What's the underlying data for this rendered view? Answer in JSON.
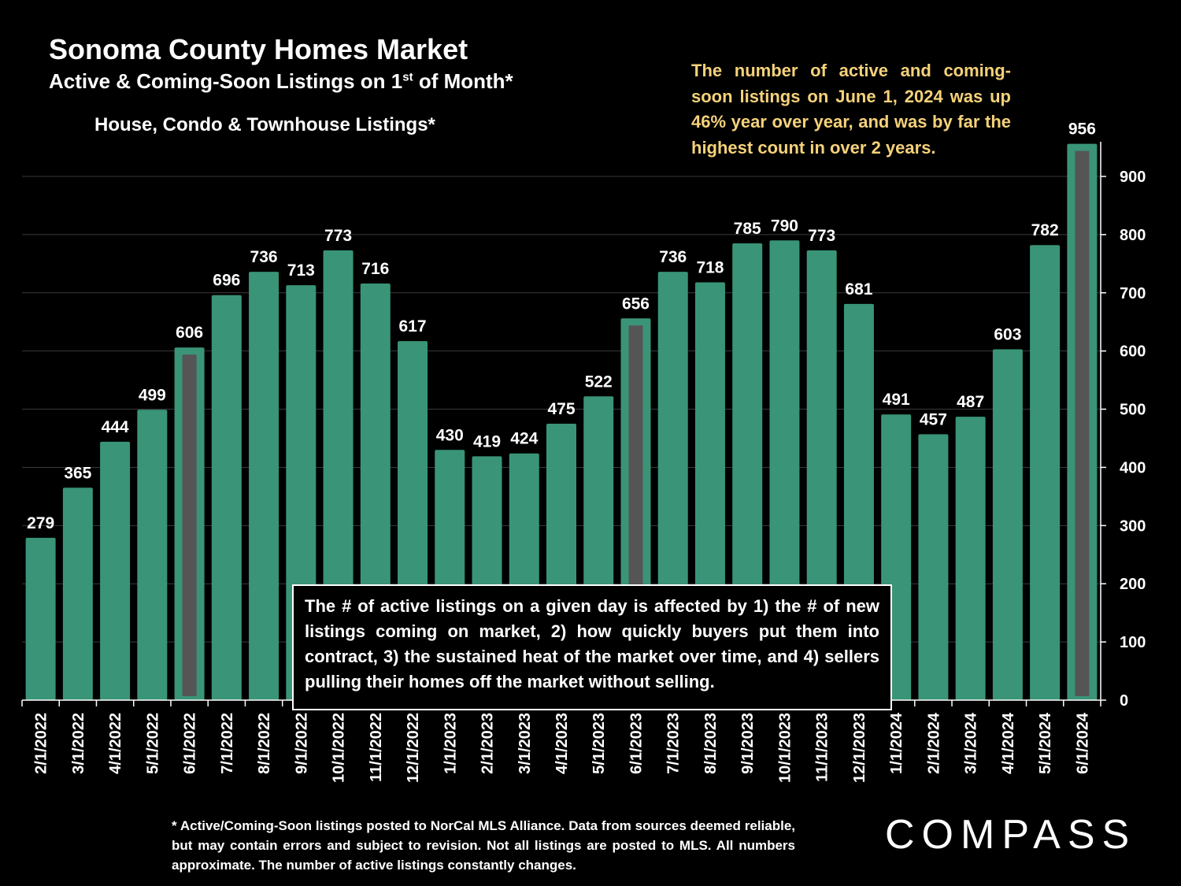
{
  "header": {
    "title": "Sonoma County Homes Market",
    "subtitle_main": "Active & Coming-Soon Listings on 1",
    "subtitle_sup": "st",
    "subtitle_tail": " of Month*",
    "series_label": "House, Condo & Townhouse Listings*"
  },
  "callout": "The number of active and coming-soon listings on June 1, 2024 was up 46% year over year, and was by far the highest count in over 2 years.",
  "note_box": "The # of active listings on a given day is affected by 1) the # of new listings coming on market, 2) how quickly buyers put them into contract, 3) the sustained heat of the market over time, and 4) sellers pulling their homes off the market without selling.",
  "footnote": "* Active/Coming-Soon listings posted to NorCal MLS Alliance.  Data from sources deemed reliable, but may contain errors and subject to revision.  Not all listings are posted to MLS. All numbers approximate. The number of active listings constantly changes.",
  "logo": "COMPASS",
  "colors": {
    "bar": "#3a9478",
    "highlight_inner": "#555555",
    "callout": "#f5d27a",
    "background": "#000000"
  },
  "chart_data": {
    "type": "bar",
    "title": "Sonoma County Homes Market",
    "subtitle": "Active & Coming-Soon Listings on 1st of Month*",
    "xlabel": "",
    "ylabel": "",
    "ylim": [
      0,
      960
    ],
    "yticks": [
      0,
      100,
      200,
      300,
      400,
      500,
      600,
      700,
      800,
      900
    ],
    "y_axis_position": "right",
    "categories": [
      "2/1/2022",
      "3/1/2022",
      "4/1/2022",
      "5/1/2022",
      "6/1/2022",
      "7/1/2022",
      "8/1/2022",
      "9/1/2022",
      "10/1/2022",
      "11/1/2022",
      "12/1/2022",
      "1/1/2023",
      "2/1/2023",
      "3/1/2023",
      "4/1/2023",
      "5/1/2023",
      "6/1/2023",
      "7/1/2023",
      "8/1/2023",
      "9/1/2023",
      "10/1/2023",
      "11/1/2023",
      "12/1/2023",
      "1/1/2024",
      "2/1/2024",
      "3/1/2024",
      "4/1/2024",
      "5/1/2024",
      "6/1/2024"
    ],
    "values": [
      279,
      365,
      444,
      499,
      606,
      696,
      736,
      713,
      773,
      716,
      617,
      430,
      419,
      424,
      475,
      522,
      656,
      736,
      718,
      785,
      790,
      773,
      681,
      491,
      457,
      487,
      603,
      782,
      956
    ],
    "highlighted": [
      "6/1/2022",
      "6/1/2023",
      "6/1/2024"
    ],
    "legend": "none"
  }
}
